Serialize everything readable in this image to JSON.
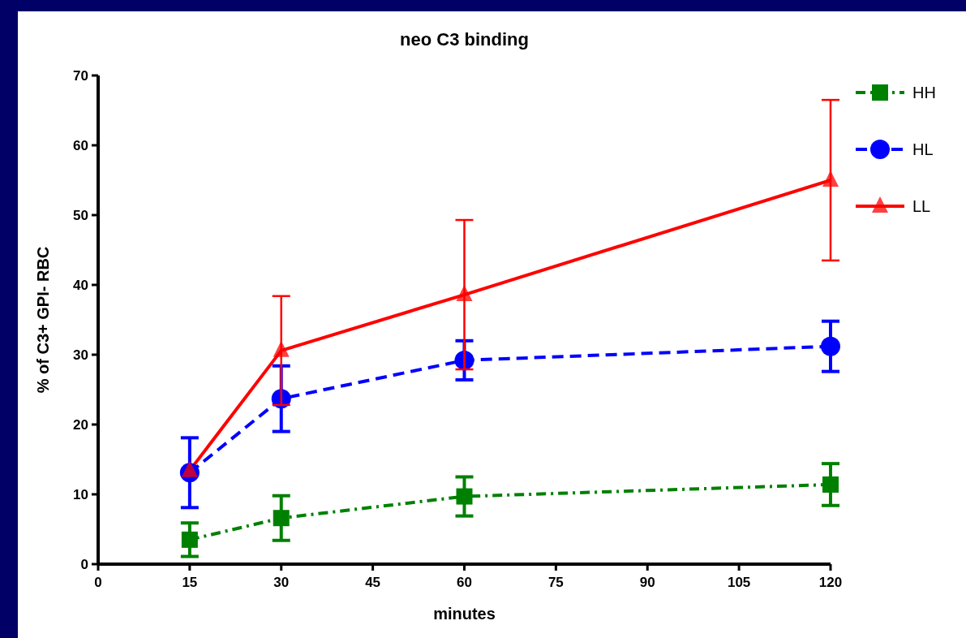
{
  "chart_data": {
    "type": "line",
    "title": "neo C3 binding",
    "xlabel": "minutes",
    "ylabel": "% of C3+ GPI- RBC",
    "x": [
      15,
      30,
      60,
      120
    ],
    "series": [
      {
        "name": "HH",
        "color": "#008000",
        "marker": "square",
        "line_style": "dashdot",
        "values": [
          3.5,
          6.6,
          9.7,
          11.4
        ],
        "errors": [
          2.4,
          3.2,
          2.8,
          3
        ]
      },
      {
        "name": "HL",
        "color": "#0000ff",
        "marker": "circle",
        "line_style": "dashed",
        "values": [
          13.1,
          23.7,
          29.2,
          31.2
        ],
        "errors": [
          5,
          4.7,
          2.8,
          3.6
        ]
      },
      {
        "name": "LL",
        "color": "#ff0000",
        "marker": "triangle",
        "line_style": "solid",
        "values": [
          13.4,
          30.6,
          38.6,
          55
        ],
        "errors": [
          null,
          7.8,
          10.7,
          11.5
        ]
      }
    ],
    "xlim": [
      0,
      120
    ],
    "xticks": [
      0,
      15,
      30,
      45,
      60,
      75,
      90,
      105,
      120
    ],
    "ylim": [
      0,
      70
    ],
    "yticks": [
      0,
      10,
      20,
      30,
      40,
      50,
      60,
      70
    ],
    "legend": "right",
    "grid": false
  }
}
